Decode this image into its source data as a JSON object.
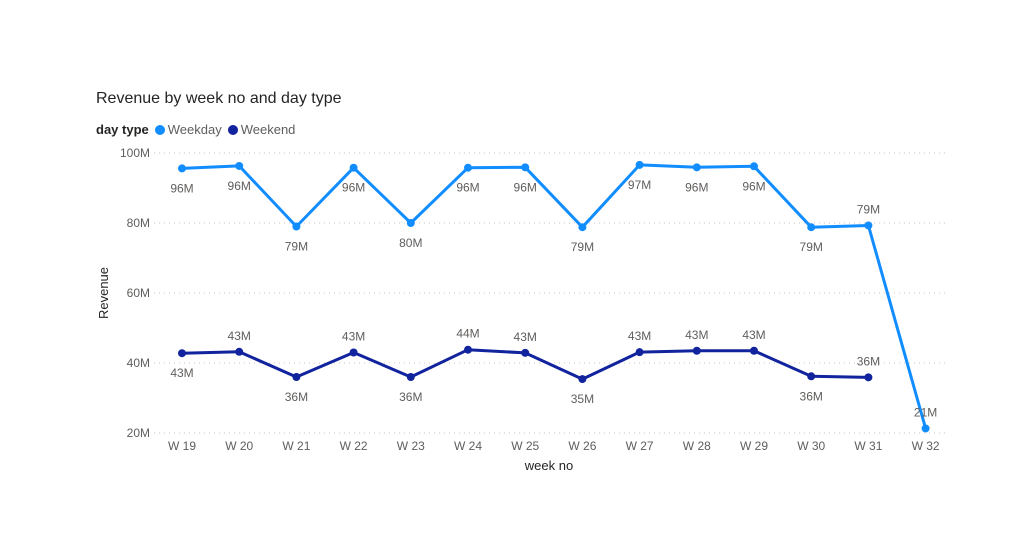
{
  "chart_data": {
    "type": "line",
    "title": "Revenue by week no and day type",
    "legend_title": "day type",
    "legend_position": "top-left",
    "xlabel": "week no",
    "ylabel": "Revenue",
    "ylim": [
      20,
      100
    ],
    "yticks": [
      "100M",
      "80M",
      "60M",
      "40M",
      "20M"
    ],
    "ytick_values": [
      100,
      80,
      60,
      40,
      20
    ],
    "categories": [
      "W 19",
      "W 20",
      "W 21",
      "W 22",
      "W 23",
      "W 24",
      "W 25",
      "W 26",
      "W 27",
      "W 28",
      "W 29",
      "W 30",
      "W 31",
      "W 32"
    ],
    "grid": "horizontal dotted",
    "series": [
      {
        "name": "Weekday",
        "color": "#118dff",
        "values": [
          95.6,
          96.3,
          79,
          95.8,
          80,
          95.8,
          95.9,
          78.8,
          96.6,
          95.9,
          96.2,
          78.8,
          79.3,
          21.3
        ],
        "labels": [
          "96M",
          "96M",
          "79M",
          "96M",
          "80M",
          "96M",
          "96M",
          "79M",
          "97M",
          "96M",
          "96M",
          "79M",
          "79M",
          "21M"
        ]
      },
      {
        "name": "Weekend",
        "color": "#12239e",
        "values": [
          42.8,
          43.2,
          36,
          43,
          36,
          43.8,
          42.9,
          35.4,
          43.1,
          43.5,
          43.5,
          36.2,
          35.9,
          null
        ],
        "labels": [
          "43M",
          "43M",
          "36M",
          "43M",
          "36M",
          "44M",
          "43M",
          "35M",
          "43M",
          "43M",
          "43M",
          "36M",
          "36M",
          null
        ]
      }
    ]
  }
}
